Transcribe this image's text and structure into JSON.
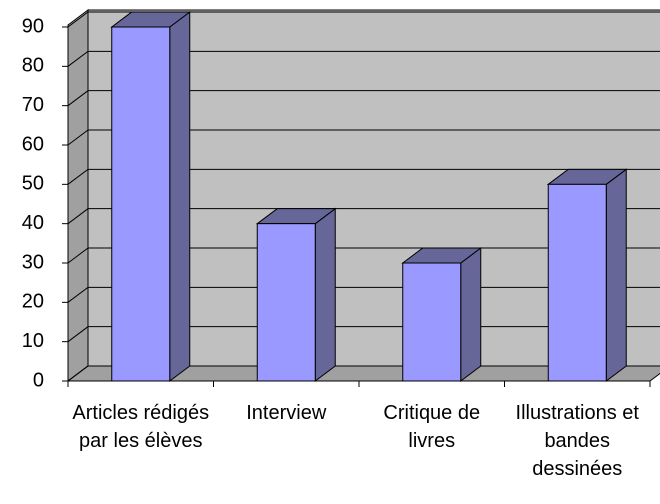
{
  "chart_data": {
    "type": "bar3d",
    "categories": [
      "Articles rédigés par les élèves",
      "Interview",
      "Critique de livres",
      "Illustrations et bandes dessinées"
    ],
    "values": [
      90,
      40,
      30,
      50
    ],
    "color": "#9999ff",
    "side_color": "#666699",
    "ylim": [
      0,
      90
    ],
    "yticks": [
      0,
      10,
      20,
      30,
      40,
      50,
      60,
      70,
      80,
      90
    ],
    "grid": true
  }
}
